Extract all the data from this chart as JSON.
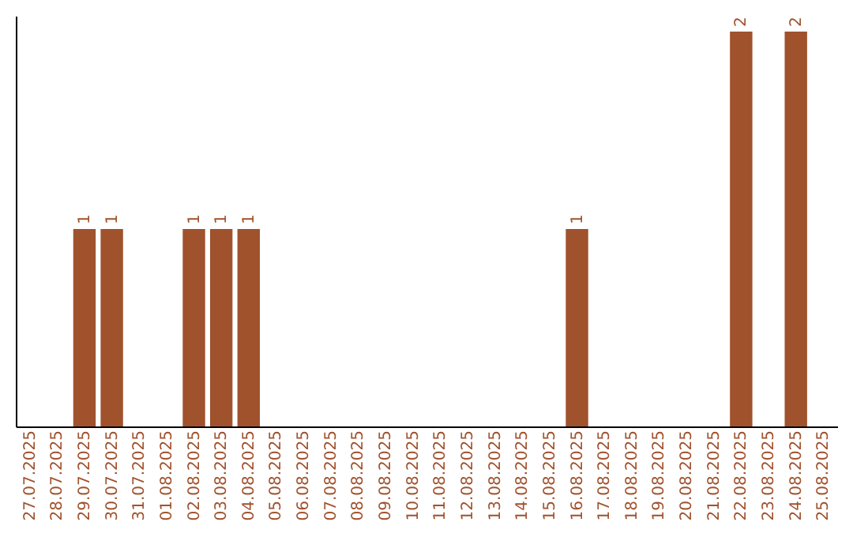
{
  "chart_data": {
    "type": "bar",
    "categories": [
      "27.07.2025",
      "28.07.2025",
      "29.07.2025",
      "30.07.2025",
      "31.07.2025",
      "01.08.2025",
      "02.08.2025",
      "03.08.2025",
      "04.08.2025",
      "05.08.2025",
      "06.08.2025",
      "07.08.2025",
      "08.08.2025",
      "09.08.2025",
      "10.08.2025",
      "11.08.2025",
      "12.08.2025",
      "13.08.2025",
      "14.08.2025",
      "15.08.2025",
      "16.08.2025",
      "17.08.2025",
      "18.08.2025",
      "19.08.2025",
      "20.08.2025",
      "21.08.2025",
      "22.08.2025",
      "23.08.2025",
      "24.08.2025",
      "25.08.2025"
    ],
    "values": [
      0,
      0,
      1,
      1,
      0,
      0,
      1,
      1,
      1,
      0,
      0,
      0,
      0,
      0,
      0,
      0,
      0,
      0,
      0,
      0,
      1,
      0,
      0,
      0,
      0,
      0,
      2,
      0,
      2,
      0
    ],
    "value_labels": [
      null,
      null,
      "1",
      "1",
      null,
      null,
      "1",
      "1",
      "1",
      null,
      null,
      null,
      null,
      null,
      null,
      null,
      null,
      null,
      null,
      null,
      "1",
      null,
      null,
      null,
      null,
      null,
      "2",
      null,
      "2",
      null
    ],
    "color": "#a0522d",
    "tick_labels": "x",
    "grid": false
  }
}
